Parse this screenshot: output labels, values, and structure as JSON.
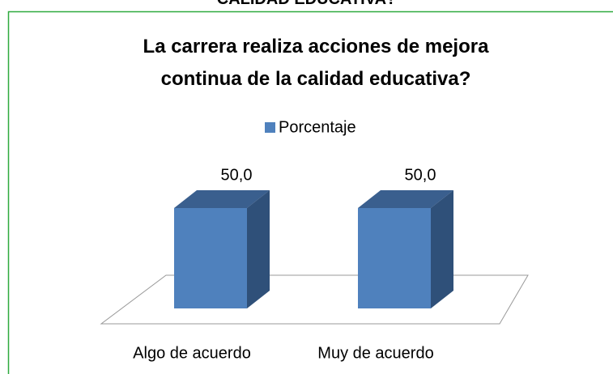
{
  "header_text": "CALIDAD EDUCATIVA?",
  "chart_data": {
    "type": "bar3d",
    "title": "La carrera realiza acciones de mejora continua de la calidad educativa?",
    "categories": [
      "Algo de acuerdo",
      "Muy de acuerdo"
    ],
    "series": [
      {
        "name": "Porcentaje",
        "color": "#4f81bd",
        "values": [
          50,
          50
        ],
        "value_labels": [
          "50,0",
          "50,0"
        ]
      }
    ]
  }
}
